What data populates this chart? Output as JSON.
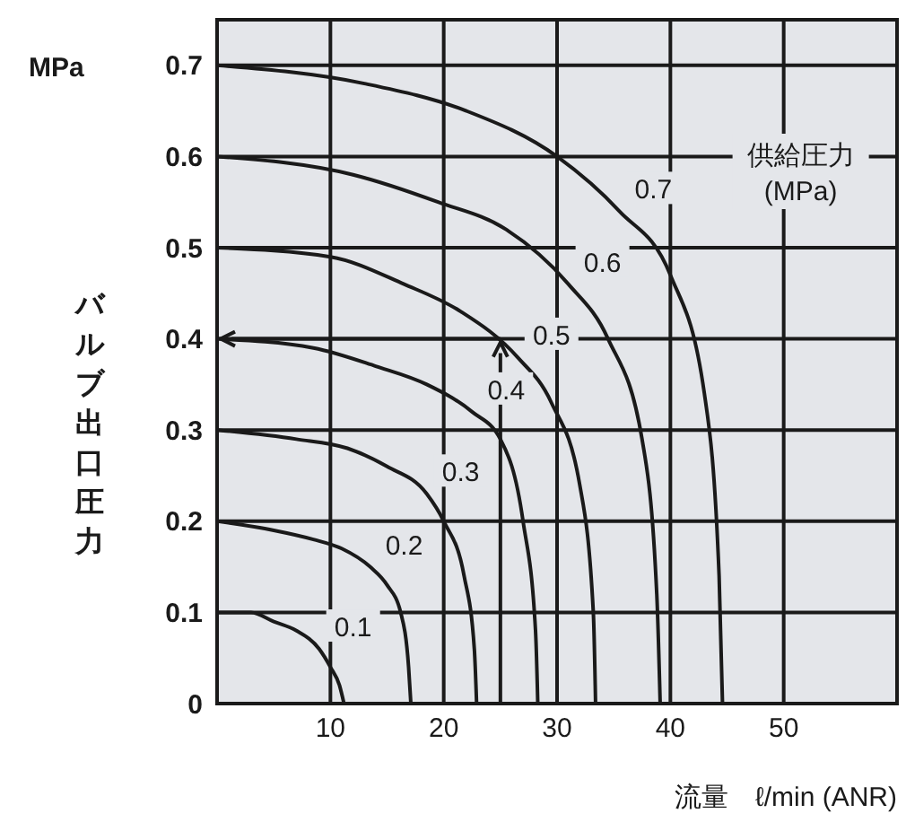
{
  "chart_data": {
    "type": "line",
    "xlabel": "流量　ℓ/min (ANR)",
    "ylabel": "バルブ出口圧力",
    "legend_title": "供給圧力\n(MPa)",
    "annotations": [
      "MPa"
    ],
    "xlim": [
      0,
      60
    ],
    "xticks": [
      10,
      20,
      30,
      40,
      50
    ],
    "ylim": [
      0,
      0.75
    ],
    "yticks": [
      0,
      0.1,
      0.2,
      0.3,
      0.4,
      0.5,
      0.6,
      0.7
    ],
    "grid": true,
    "marker": "none",
    "line_style": "solid",
    "series": [
      {
        "name": "0.1",
        "color": "#1a1a1a",
        "x": [
          0,
          3,
          5,
          7,
          9,
          10,
          10.8,
          11.2
        ],
        "values": [
          0.1,
          0.1,
          0.09,
          0.08,
          0.06,
          0.04,
          0.02,
          0
        ]
      },
      {
        "name": "0.2",
        "color": "#1a1a1a",
        "x": [
          0,
          5,
          8.5,
          11,
          13.5,
          15,
          16.2,
          16.9,
          17.1
        ],
        "values": [
          0.2,
          0.19,
          0.18,
          0.17,
          0.15,
          0.13,
          0.1,
          0.04,
          0
        ]
      },
      {
        "name": "0.3",
        "color": "#1a1a1a",
        "x": [
          0,
          7,
          11.5,
          15,
          18.5,
          20,
          21.8,
          22.7,
          22.9
        ],
        "values": [
          0.3,
          0.29,
          0.28,
          0.26,
          0.23,
          0.2,
          0.14,
          0.06,
          0
        ]
      },
      {
        "name": "0.4",
        "color": "#1a1a1a",
        "x": [
          0,
          8.5,
          14,
          18.5,
          22.5,
          25,
          27,
          28.1,
          28.3
        ],
        "values": [
          0.4,
          0.39,
          0.37,
          0.35,
          0.32,
          0.29,
          0.2,
          0.08,
          0
        ]
      },
      {
        "name": "0.5",
        "color": "#1a1a1a",
        "x": [
          0,
          10,
          16.5,
          21.5,
          26.5,
          29.5,
          32,
          33.2,
          33.4
        ],
        "values": [
          0.5,
          0.49,
          0.46,
          0.43,
          0.38,
          0.33,
          0.24,
          0.1,
          0
        ]
      },
      {
        "name": "0.6",
        "color": "#1a1a1a",
        "x": [
          0,
          12,
          19.5,
          25.5,
          31,
          34.5,
          37.5,
          38.8,
          39.1
        ],
        "values": [
          0.6,
          0.58,
          0.55,
          0.52,
          0.46,
          0.4,
          0.29,
          0.12,
          0
        ]
      },
      {
        "name": "0.7",
        "color": "#1a1a1a",
        "x": [
          0,
          13,
          22,
          30,
          35.5,
          40,
          43,
          44.3,
          44.6
        ],
        "values": [
          0.7,
          0.68,
          0.65,
          0.6,
          0.54,
          0.47,
          0.34,
          0.14,
          0
        ]
      }
    ]
  }
}
